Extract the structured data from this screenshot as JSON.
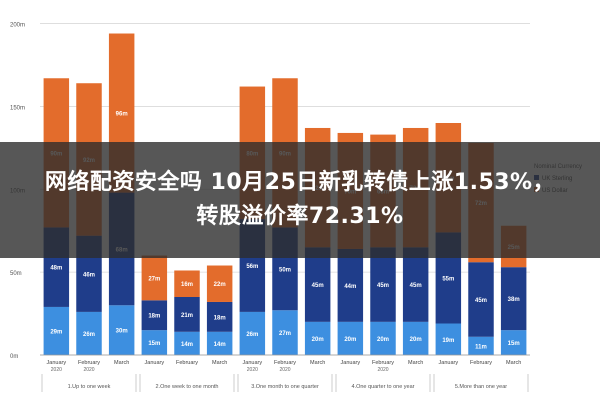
{
  "headline": {
    "line1": "网络配资安全吗 10月25日新乳转债上涨1.53%，",
    "line2": "转股溢价率72.31%"
  },
  "chart_data": {
    "type": "bar",
    "stacked": true,
    "ylim": [
      0,
      210
    ],
    "y_ticks": [
      {
        "value": 0,
        "label": "0m"
      },
      {
        "value": 50,
        "label": "50m"
      },
      {
        "value": 100,
        "label": "100m"
      },
      {
        "value": 150,
        "label": "150m"
      },
      {
        "value": 200,
        "label": "200m"
      }
    ],
    "categories": [
      "January",
      "February",
      "March",
      "January",
      "February",
      "March",
      "January",
      "February",
      "March",
      "January",
      "February",
      "March",
      "January",
      "February",
      "March"
    ],
    "tick_sublabels": [
      "2020",
      "2020",
      "",
      "",
      "",
      "",
      "2020",
      "2020",
      "",
      "",
      "2020",
      "",
      "",
      "",
      ""
    ],
    "groups": [
      {
        "label": "1.Up to one week",
        "span": [
          0,
          2
        ]
      },
      {
        "label": "2.One week to one month",
        "span": [
          3,
          5
        ]
      },
      {
        "label": "3.One month to one quarter",
        "span": [
          6,
          8
        ]
      },
      {
        "label": "4.One quarter to one year",
        "span": [
          9,
          11
        ]
      },
      {
        "label": "5.More than one year",
        "span": [
          12,
          14
        ]
      }
    ],
    "legend": {
      "title": "Nominal Currency",
      "position": "right"
    },
    "series": [
      {
        "name": "",
        "color": "#3d8fe0",
        "values": [
          29,
          26,
          30,
          15,
          14,
          14,
          26,
          27,
          20,
          20,
          20,
          20,
          19,
          11,
          15
        ],
        "labels": [
          "29m",
          "26m",
          "30m",
          "15m",
          "14m",
          "14m",
          "26m",
          "27m",
          "20m",
          "20m",
          "20m",
          "20m",
          "19m",
          "11m",
          "15m"
        ]
      },
      {
        "name": "UK Sterling",
        "color": "#1f3d8a",
        "values": [
          48,
          46,
          68,
          18,
          21,
          18,
          56,
          50,
          45,
          44,
          45,
          45,
          55,
          45,
          38
        ],
        "labels": [
          "48m",
          "46m",
          "68m",
          "18m",
          "21m",
          "18m",
          "56m",
          "50m",
          "45m",
          "44m",
          "45m",
          "45m",
          "55m",
          "45m",
          "38m"
        ]
      },
      {
        "name": "US Dollar",
        "color": "#e36c2c",
        "values": [
          90,
          92,
          96,
          27,
          16,
          22,
          80,
          90,
          72,
          70,
          68,
          72,
          66,
          72,
          25
        ],
        "labels": [
          "90m",
          "92m",
          "96m",
          "27m",
          "16m",
          "22m",
          "80m",
          "90m",
          "72m",
          "70m",
          "68m",
          "72m",
          "66m",
          "72m",
          "25m"
        ]
      }
    ]
  }
}
